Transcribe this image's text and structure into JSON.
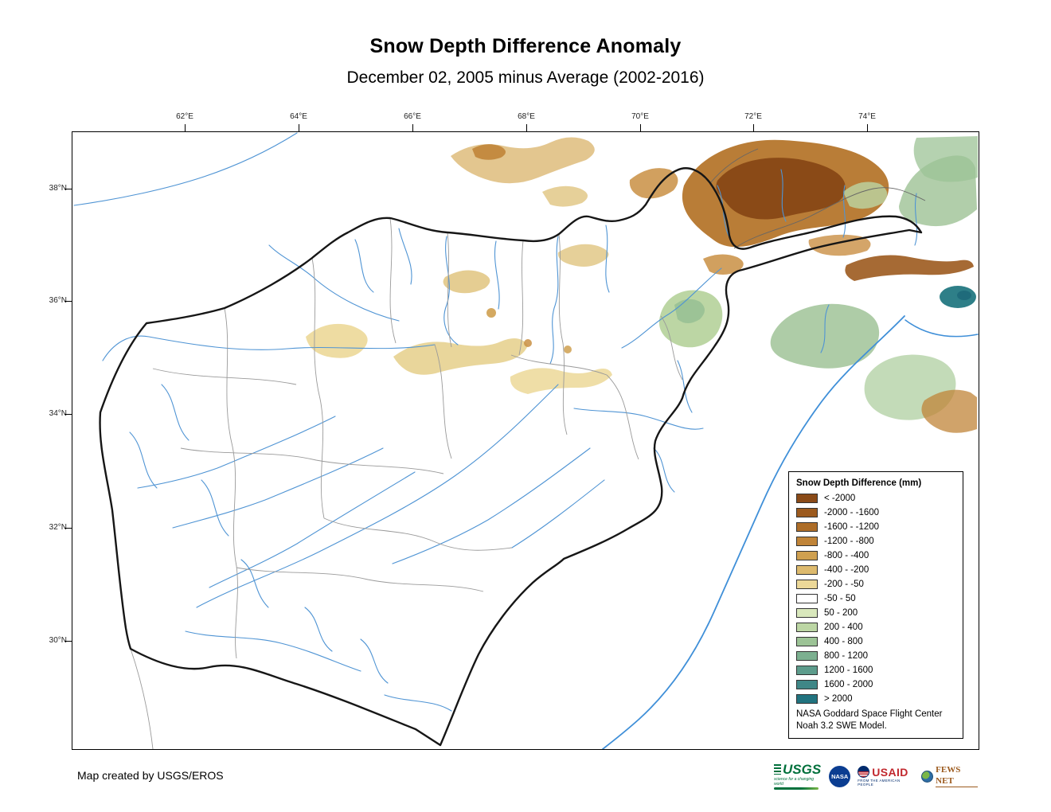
{
  "title": "Snow Depth Difference Anomaly",
  "subtitle": "December 02, 2005 minus Average (2002-2016)",
  "map": {
    "lon_labels": [
      "62°E",
      "64°E",
      "66°E",
      "68°E",
      "70°E",
      "72°E",
      "74°E"
    ],
    "lat_labels": [
      "38°N",
      "36°N",
      "34°N",
      "32°N",
      "30°N"
    ]
  },
  "legend": {
    "title": "Snow Depth Difference (mm)",
    "entries": [
      {
        "label": "< -2000",
        "color": "#8a4a17"
      },
      {
        "label": "-2000 - -1600",
        "color": "#9c5a1e"
      },
      {
        "label": "-1600 - -1200",
        "color": "#ad6d28"
      },
      {
        "label": "-1200 - -800",
        "color": "#c08438"
      },
      {
        "label": "-800 - -400",
        "color": "#cfa050"
      },
      {
        "label": "-400 - -200",
        "color": "#ddba6e"
      },
      {
        "label": "-200 - -50",
        "color": "#ecd898"
      },
      {
        "label": "-50 - 50",
        "color": "#ffffff"
      },
      {
        "label": "50 - 200",
        "color": "#d9e8bc"
      },
      {
        "label": "200 - 400",
        "color": "#bcd6a4"
      },
      {
        "label": "400 - 800",
        "color": "#9cc396"
      },
      {
        "label": "800 - 1200",
        "color": "#7cb090"
      },
      {
        "label": "1200 - 1600",
        "color": "#5d9c8c"
      },
      {
        "label": "1600 - 2000",
        "color": "#3f8787"
      },
      {
        "label": "> 2000",
        "color": "#21737f"
      }
    ],
    "note_line1": "NASA Goddard Space Flight Center",
    "note_line2": "Noah 3.2 SWE Model."
  },
  "footer": {
    "credit": "Map created by USGS/EROS"
  },
  "logos": {
    "usgs": {
      "name": "USGS",
      "tagline": "science for a changing world",
      "color": "#00703c"
    },
    "nasa": {
      "name": "NASA",
      "color": "#0b3d91"
    },
    "usaid": {
      "name": "USAID",
      "tagline": "FROM THE AMERICAN PEOPLE",
      "color": "#002a6c",
      "accent": "#c1272d"
    },
    "fewsnet": {
      "name": "FEWS NET",
      "color": "#9c5a1e"
    }
  }
}
